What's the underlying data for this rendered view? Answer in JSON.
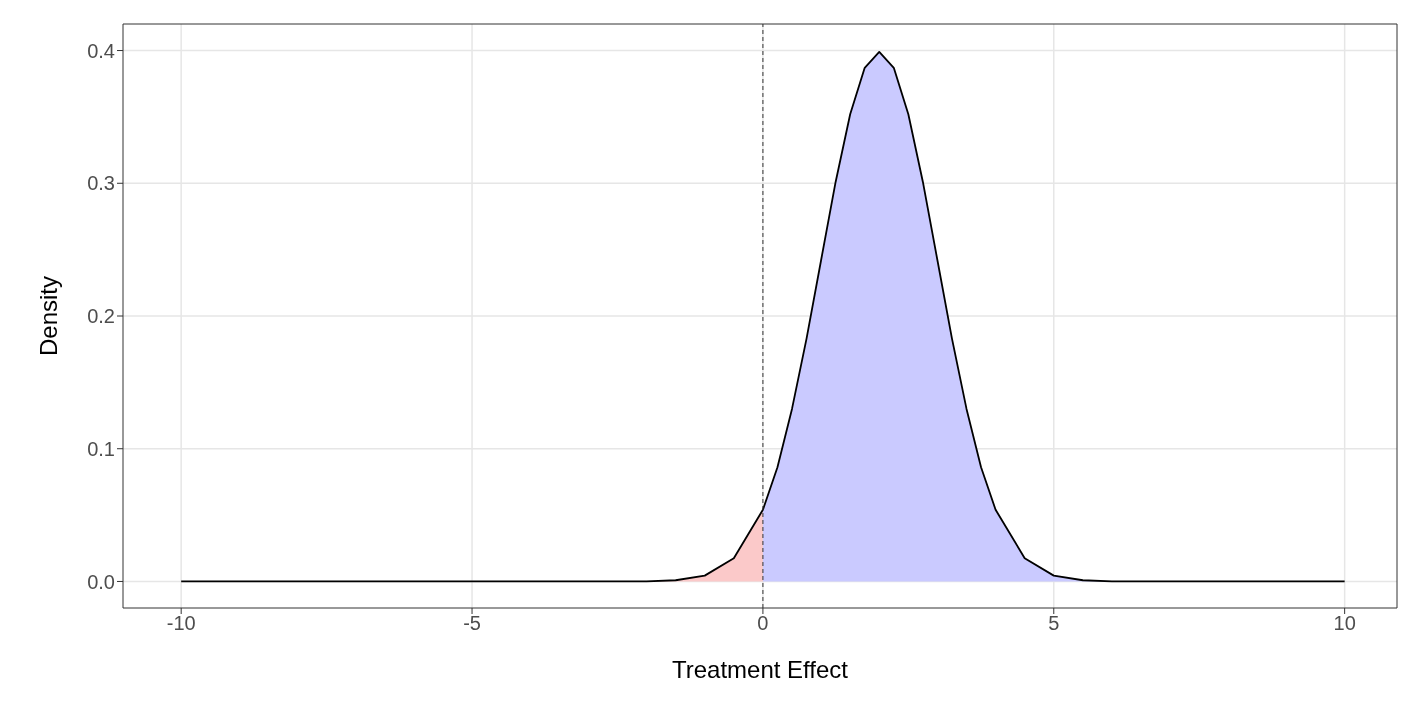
{
  "chart_data": {
    "type": "area",
    "xlabel": "Treatment Effect",
    "ylabel": "Density",
    "xlim": [
      -11,
      10.9
    ],
    "ylim": [
      -0.02,
      0.42
    ],
    "xticks": [
      -10,
      -5,
      0,
      5,
      10
    ],
    "yticks": [
      {
        "value": 0,
        "label": "0.0"
      },
      0.1,
      0.2,
      0.3,
      0.4
    ],
    "grid": true,
    "ref_lines": [
      {
        "axis": "x",
        "value": 0,
        "color": "#333333",
        "line_style": "dashed"
      }
    ],
    "series": [
      {
        "color": "#fbc9c9",
        "x": [
          -10,
          -2,
          -1.5,
          -1,
          -0.5,
          0
        ],
        "values": [
          0,
          0.0001,
          0.0009,
          0.0044,
          0.0175,
          0.054
        ]
      },
      {
        "color": "#cacaff",
        "x": [
          0,
          0.25,
          0.5,
          0.75,
          1,
          1.25,
          1.5,
          1.75,
          2,
          2.25,
          2.5,
          2.75,
          3,
          3.25,
          3.5,
          3.75,
          4,
          4.5,
          5,
          5.5,
          6,
          10
        ],
        "values": [
          0.054,
          0.086,
          0.13,
          0.183,
          0.242,
          0.301,
          0.352,
          0.387,
          0.399,
          0.387,
          0.352,
          0.301,
          0.242,
          0.183,
          0.13,
          0.086,
          0.054,
          0.0175,
          0.0044,
          0.0009,
          0.0001,
          0
        ]
      },
      {
        "type": "line",
        "color": "#000000",
        "x": [
          -10,
          -2,
          -1.5,
          -1,
          -0.5,
          0,
          0.25,
          0.5,
          0.75,
          1,
          1.25,
          1.5,
          1.75,
          2,
          2.25,
          2.5,
          2.75,
          3,
          3.25,
          3.5,
          3.75,
          4,
          4.5,
          5,
          5.5,
          6,
          10
        ],
        "values": [
          0,
          0.0001,
          0.0009,
          0.0044,
          0.0175,
          0.054,
          0.086,
          0.13,
          0.183,
          0.242,
          0.301,
          0.352,
          0.387,
          0.399,
          0.387,
          0.352,
          0.301,
          0.242,
          0.183,
          0.13,
          0.086,
          0.054,
          0.0175,
          0.0044,
          0.0009,
          0.0001,
          0
        ]
      }
    ]
  }
}
